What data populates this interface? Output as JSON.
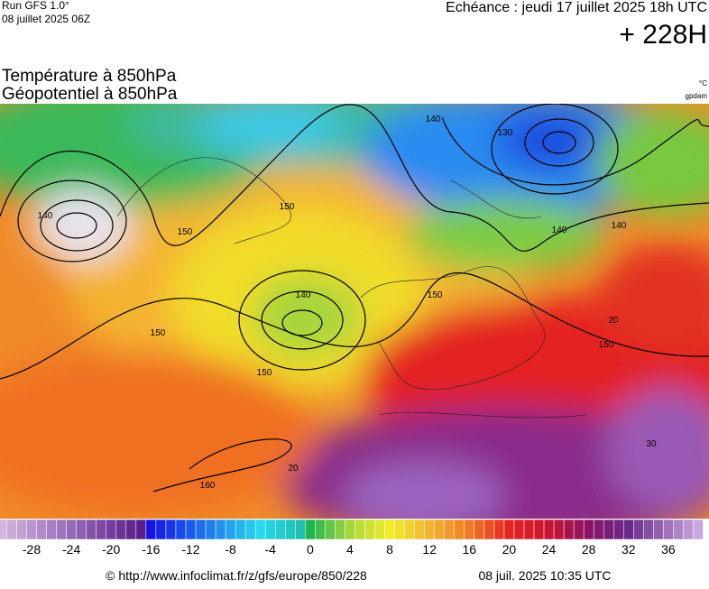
{
  "header": {
    "run": "Run GFS 1.0°",
    "run_date": "08 juillet 2025 06Z",
    "valid": "Echéance : jeudi 17 juillet 2025 18h UTC",
    "lead": "+ 228H",
    "title_1": "Température à 850hPa",
    "title_2": "Géopotentiel à 850hPa",
    "unit_1": "°C",
    "unit_2": "gpdam"
  },
  "map": {
    "contour_labels": [
      "140",
      "150",
      "150",
      "150",
      "150",
      "140",
      "150",
      "160",
      "140",
      "130",
      "140",
      "150",
      "140",
      "20",
      "20",
      "30"
    ]
  },
  "colorbar": {
    "ticks": [
      -28,
      -24,
      -20,
      -16,
      -12,
      -8,
      -4,
      0,
      4,
      8,
      12,
      16,
      20,
      24,
      28,
      32,
      36
    ]
  },
  "footer": {
    "source": "© http://www.infoclimat.fr/z/gfs/europe/850/228",
    "generated": "08 juil. 2025 10:35 UTC"
  }
}
